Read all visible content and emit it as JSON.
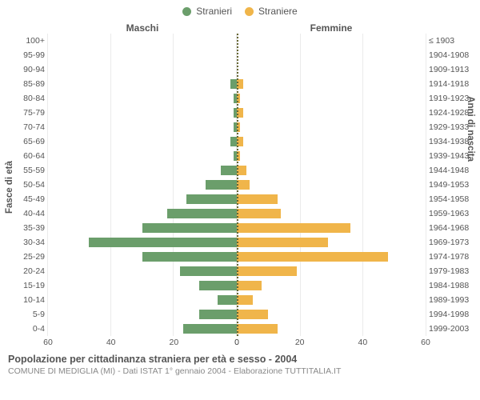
{
  "legend": {
    "male": {
      "label": "Stranieri",
      "color": "#6b9e6b"
    },
    "female": {
      "label": "Straniere",
      "color": "#f0b54a"
    }
  },
  "headers": {
    "male": "Maschi",
    "female": "Femmine"
  },
  "axis_titles": {
    "left": "Fasce di età",
    "right": "Anni di nascita"
  },
  "footer": {
    "line1": "Popolazione per cittadinanza straniera per età e sesso - 2004",
    "line2": "COMUNE DI MEDIGLIA (MI) - Dati ISTAT 1° gennaio 2004 - Elaborazione TUTTITALIA.IT"
  },
  "chart": {
    "type": "population-pyramid",
    "background_color": "#ffffff",
    "grid_color": "rgba(0,0,0,0.08)",
    "center_line_color": "#666633",
    "xmax": 60,
    "x_ticks": [
      0,
      20,
      40,
      60
    ],
    "label_fontsize": 10.5,
    "title_fontsize": 11.5,
    "rows": [
      {
        "age": "100+",
        "birth": "≤ 1903",
        "m": 0,
        "f": 0
      },
      {
        "age": "95-99",
        "birth": "1904-1908",
        "m": 0,
        "f": 0
      },
      {
        "age": "90-94",
        "birth": "1909-1913",
        "m": 0,
        "f": 0
      },
      {
        "age": "85-89",
        "birth": "1914-1918",
        "m": 2,
        "f": 2
      },
      {
        "age": "80-84",
        "birth": "1919-1923",
        "m": 1,
        "f": 1
      },
      {
        "age": "75-79",
        "birth": "1924-1928",
        "m": 1,
        "f": 2
      },
      {
        "age": "70-74",
        "birth": "1929-1933",
        "m": 1,
        "f": 1
      },
      {
        "age": "65-69",
        "birth": "1934-1938",
        "m": 2,
        "f": 2
      },
      {
        "age": "60-64",
        "birth": "1939-1943",
        "m": 1,
        "f": 1
      },
      {
        "age": "55-59",
        "birth": "1944-1948",
        "m": 5,
        "f": 3
      },
      {
        "age": "50-54",
        "birth": "1949-1953",
        "m": 10,
        "f": 4
      },
      {
        "age": "45-49",
        "birth": "1954-1958",
        "m": 16,
        "f": 13
      },
      {
        "age": "40-44",
        "birth": "1959-1963",
        "m": 22,
        "f": 14
      },
      {
        "age": "35-39",
        "birth": "1964-1968",
        "m": 30,
        "f": 36
      },
      {
        "age": "30-34",
        "birth": "1969-1973",
        "m": 47,
        "f": 29
      },
      {
        "age": "25-29",
        "birth": "1974-1978",
        "m": 30,
        "f": 48
      },
      {
        "age": "20-24",
        "birth": "1979-1983",
        "m": 18,
        "f": 19
      },
      {
        "age": "15-19",
        "birth": "1984-1988",
        "m": 12,
        "f": 8
      },
      {
        "age": "10-14",
        "birth": "1989-1993",
        "m": 6,
        "f": 5
      },
      {
        "age": "5-9",
        "birth": "1994-1998",
        "m": 12,
        "f": 10
      },
      {
        "age": "0-4",
        "birth": "1999-2003",
        "m": 17,
        "f": 13
      }
    ]
  }
}
